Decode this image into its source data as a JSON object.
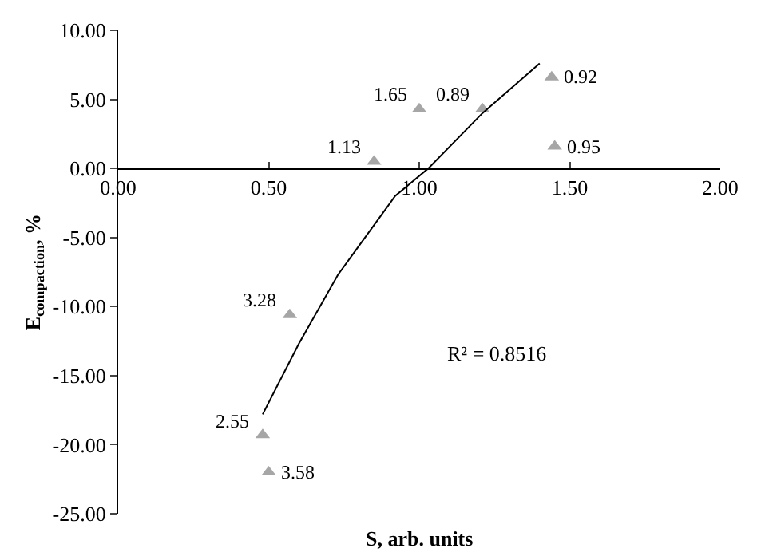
{
  "chart_data": {
    "type": "scatter",
    "xlabel": "S, arb. units",
    "ylabel": "E$_{compaction}$, %",
    "xlim": [
      0,
      2
    ],
    "xticks": [
      {
        "value": 0,
        "label": "0.00"
      },
      {
        "value": 0.5,
        "label": "0.50"
      },
      {
        "value": 1,
        "label": "1.00"
      },
      {
        "value": 1.5,
        "label": "1.50"
      },
      {
        "value": 2,
        "label": "2.00"
      }
    ],
    "ylim": [
      -25,
      10
    ],
    "yticks": [
      {
        "value": -25,
        "label": "-25.00"
      },
      {
        "value": -20,
        "label": "-20.00"
      },
      {
        "value": -15,
        "label": "-15.00"
      },
      {
        "value": -10,
        "label": "-10.00"
      },
      {
        "value": -5,
        "label": "-5.00"
      },
      {
        "value": 0,
        "label": "0.00"
      },
      {
        "value": 5,
        "label": "5.00"
      },
      {
        "value": 10,
        "label": "10.00"
      }
    ],
    "series": [
      {
        "color": "#a6a6a6",
        "marker": "triangle",
        "x": [
          0.85,
          1.0,
          1.21,
          1.44,
          1.45,
          0.57,
          0.48,
          0.5
        ],
        "values": [
          0.5,
          4.3,
          4.3,
          6.6,
          1.6,
          -10.6,
          -19.3,
          -22.0
        ]
      },
      {
        "type": "line",
        "marker": "none",
        "color": "#000000",
        "x": [
          0.48,
          0.6,
          0.73,
          0.8,
          0.92,
          1.03,
          1.21,
          1.4
        ],
        "values": [
          -17.8,
          -12.7,
          -7.7,
          -5.6,
          -2.0,
          0,
          4.0,
          7.6
        ]
      }
    ],
    "annotations": [
      {
        "text": "1.13",
        "x": 0.85,
        "y": 0.5
      },
      {
        "text": "1.65",
        "x": 1.0,
        "y": 4.3
      },
      {
        "text": "0.89",
        "x": 1.21,
        "y": 4.3
      },
      {
        "text": "0.92",
        "x": 1.44,
        "y": 6.6
      },
      {
        "text": "0.95",
        "x": 1.45,
        "y": 1.6
      },
      {
        "text": "3.28",
        "x": 0.57,
        "y": -10.6
      },
      {
        "text": "2.55",
        "x": 0.48,
        "y": -19.3
      },
      {
        "text": "3.58",
        "x": 0.5,
        "y": -22.0
      },
      "R² = 0.8516"
    ]
  }
}
